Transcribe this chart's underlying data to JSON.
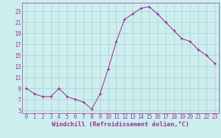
{
  "hours": [
    0,
    1,
    2,
    3,
    4,
    5,
    6,
    7,
    8,
    9,
    10,
    11,
    12,
    13,
    14,
    15,
    16,
    17,
    18,
    19,
    20,
    21,
    22,
    23
  ],
  "values": [
    9.0,
    8.0,
    7.5,
    7.5,
    9.0,
    7.5,
    7.0,
    6.5,
    5.2,
    8.0,
    12.5,
    17.5,
    21.5,
    22.5,
    23.5,
    23.8,
    22.5,
    21.0,
    19.5,
    18.0,
    17.5,
    16.0,
    15.0,
    13.5
  ],
  "line_color": "#993399",
  "marker": "+",
  "bg_color": "#cceeee",
  "grid_color": "#aacccc",
  "xlabel": "Windchill (Refroidissement éolien,°C)",
  "ylabel_ticks": [
    5,
    7,
    9,
    11,
    13,
    15,
    17,
    19,
    21,
    23
  ],
  "xlim": [
    -0.5,
    23.5
  ],
  "ylim": [
    4.5,
    24.5
  ],
  "tick_color": "#993399",
  "label_fontsize": 6.5,
  "tick_fontsize": 5.5
}
